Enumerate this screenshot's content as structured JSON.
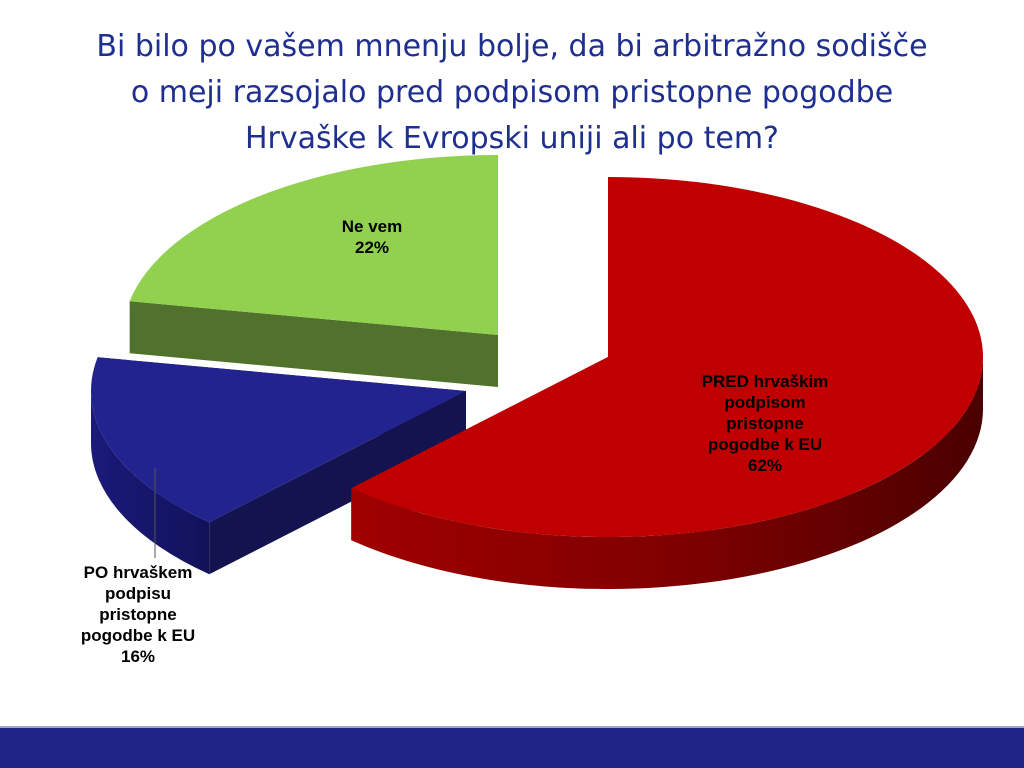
{
  "title_lines": [
    "Bi bilo po vašem mnenju bolje, da bi arbitražno sodišče",
    "o meji razsojalo pred podpisom pristopne pogodbe",
    "Hrvaške k Evropski uniji ali po tem?"
  ],
  "chart_data": {
    "type": "pie",
    "title": "Bi bilo po vašem mnenju bolje, da bi arbitražno sodišče o meji razsojalo pred podpisom pristopne pogodbe Hrvaške k Evropski uniji ali po tem?",
    "slices": [
      {
        "label_lines": [
          "PRED hrvaškim",
          "podpisom",
          "pristopne",
          "pogodbe k EU"
        ],
        "value": 62,
        "value_label": "62%",
        "color": "#c00000"
      },
      {
        "label_lines": [
          "PO hrvaškem",
          "podpisu",
          "pristopne",
          "pogodbe k EU"
        ],
        "value": 16,
        "value_label": "16%",
        "color": "#23238f"
      },
      {
        "label_lines": [
          "Ne vem"
        ],
        "value": 22,
        "value_label": "22%",
        "color": "#92d050"
      }
    ]
  },
  "colors": {
    "title": "#1f2f8f",
    "footer_bar": "#202585"
  }
}
